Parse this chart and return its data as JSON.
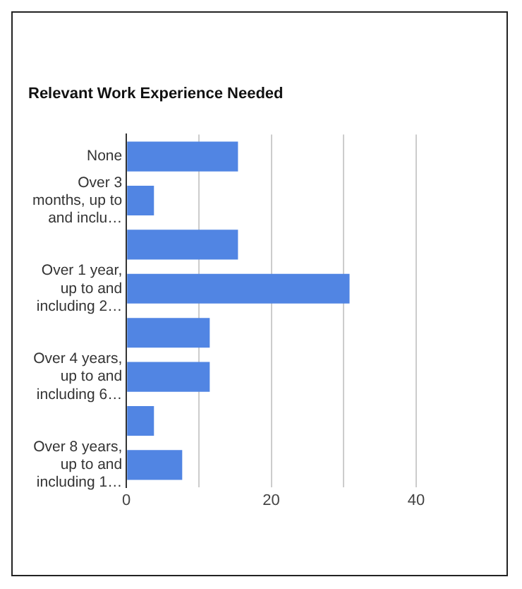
{
  "chart_data": {
    "type": "bar",
    "orientation": "horizontal",
    "title": "Relevant Work Experience Needed",
    "categories": [
      "None",
      "Over 3 months, up to and inclu…",
      null,
      "Over 1 year, up to and including 2…",
      null,
      "Over 4 years, up to and including 6…",
      null,
      "Over 8 years, up to and including 1…"
    ],
    "values": [
      15.4,
      3.8,
      15.4,
      30.8,
      11.5,
      11.5,
      3.8,
      7.7
    ],
    "color": "#5185e3",
    "xlim": [
      0,
      40
    ],
    "xticks": [
      0,
      {
        "value": 10,
        "label": null
      },
      20,
      {
        "value": 30,
        "label": null
      },
      40
    ],
    "grid": "x",
    "legend": false
  }
}
